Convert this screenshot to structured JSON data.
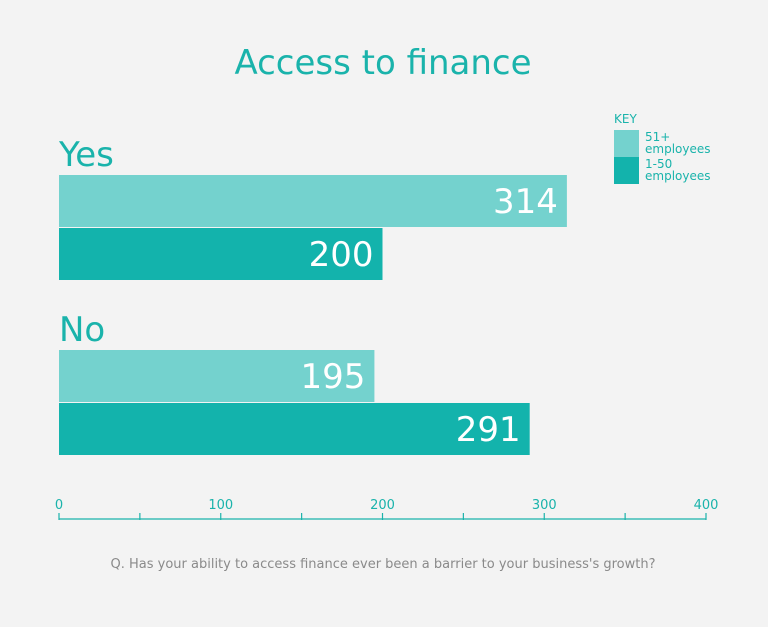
{
  "chart_data": {
    "type": "bar",
    "orientation": "horizontal",
    "title": "Access to finance",
    "categories": [
      "Yes",
      "No"
    ],
    "series": [
      {
        "name": "51+ employees",
        "name_lines": [
          "51+",
          "employees"
        ],
        "color": "#74d2ce",
        "values": [
          314,
          195
        ]
      },
      {
        "name": "1-50 employees",
        "name_lines": [
          "1-50",
          "employees"
        ],
        "color": "#13b3ac",
        "values": [
          200,
          291
        ]
      }
    ],
    "xlim": [
      0,
      400
    ],
    "xticks": [
      0,
      100,
      200,
      300,
      400
    ],
    "legend_title": "KEY",
    "legend_position": "top-right",
    "footnote": "Q. Has your ability to access finance ever been a barrier to your business's growth?"
  },
  "colors": {
    "accent": "#1ab3ab",
    "background": "#f3f3f3",
    "footnote_text": "#8a8a8a"
  }
}
